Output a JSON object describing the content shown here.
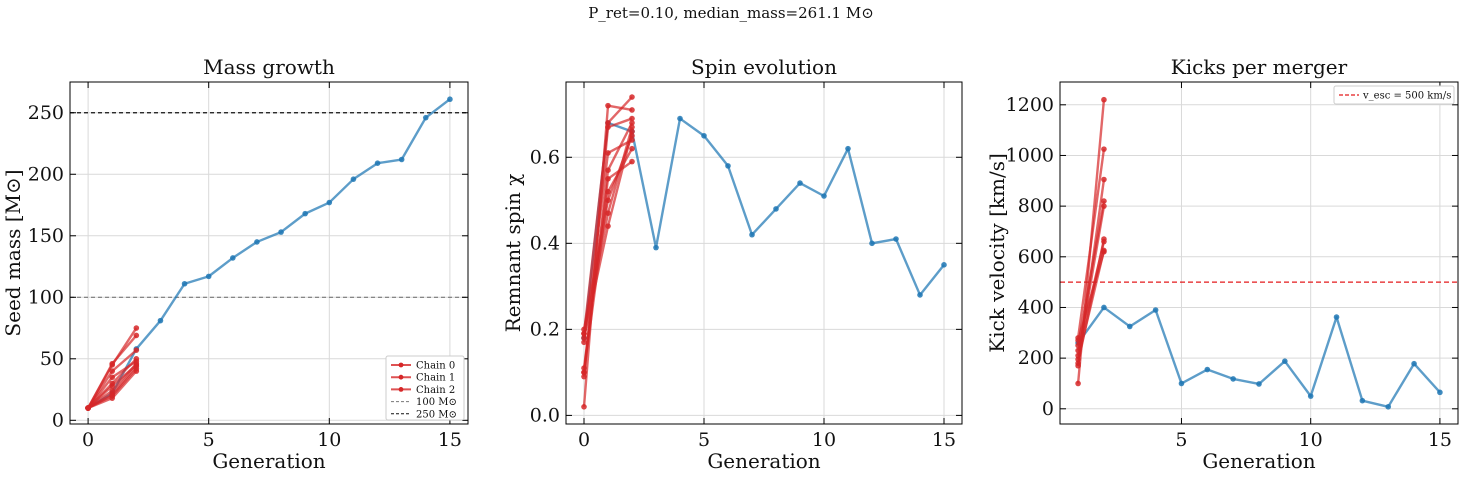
{
  "figure": {
    "suptitle": "P_ret=0.10, median_mass=261.1 M⊙"
  },
  "chart_data": [
    {
      "type": "line",
      "title": "Mass growth",
      "xlabel": "Generation",
      "ylabel": "Seed mass [M⊙]",
      "xlim": [
        -0.75,
        15.75
      ],
      "ylim": [
        -3,
        275
      ],
      "xticks": [
        0,
        5,
        10,
        15
      ],
      "yticks": [
        0,
        50,
        100,
        150,
        200,
        250
      ],
      "grid": true,
      "legend": {
        "placement": "lower right",
        "entries": [
          "Chain 0",
          "Chain 1",
          "Chain 2",
          "100 M⊙",
          "250 M⊙"
        ]
      },
      "hlines": [
        {
          "y": 100,
          "label": "100 M⊙",
          "color": "#777777",
          "dash": "4,3"
        },
        {
          "y": 250,
          "label": "250 M⊙",
          "color": "#111111",
          "dash": "4,3"
        }
      ],
      "series": [
        {
          "color": "#1f77b4",
          "style": "main",
          "x": [
            0,
            1,
            2,
            3,
            4,
            5,
            6,
            7,
            8,
            9,
            10,
            11,
            12,
            13,
            14,
            15
          ],
          "y": [
            10,
            22,
            58,
            81,
            111,
            117,
            132,
            145,
            153,
            168,
            177,
            196,
            209,
            212,
            246,
            261
          ]
        },
        {
          "name": "Chain 0",
          "color": "#d62728",
          "style": "chain",
          "x": [
            0,
            1,
            2
          ],
          "y": [
            10,
            45,
            75
          ]
        },
        {
          "name": "Chain 1",
          "color": "#d62728",
          "style": "chain",
          "x": [
            0,
            1,
            2
          ],
          "y": [
            10,
            35,
            48
          ]
        },
        {
          "name": "Chain 2",
          "color": "#d62728",
          "style": "chain",
          "x": [
            0,
            1,
            2
          ],
          "y": [
            10,
            20,
            42
          ]
        },
        {
          "color": "#d62728",
          "style": "chain",
          "x": [
            0,
            1,
            2
          ],
          "y": [
            10,
            46,
            69
          ]
        },
        {
          "color": "#d62728",
          "style": "chain",
          "x": [
            0,
            1,
            2
          ],
          "y": [
            10,
            28,
            45
          ]
        },
        {
          "color": "#d62728",
          "style": "chain",
          "x": [
            0,
            1,
            2
          ],
          "y": [
            10,
            18,
            40
          ]
        },
        {
          "color": "#d62728",
          "style": "chain",
          "x": [
            0,
            1,
            2
          ],
          "y": [
            10,
            30,
            50
          ]
        },
        {
          "color": "#d62728",
          "style": "chain",
          "x": [
            0,
            1,
            2
          ],
          "y": [
            10,
            24,
            46
          ]
        },
        {
          "color": "#d62728",
          "style": "chain",
          "x": [
            0,
            1,
            2
          ],
          "y": [
            10,
            40,
            57
          ]
        },
        {
          "color": "#d62728",
          "style": "chain",
          "x": [
            0,
            1,
            2
          ],
          "y": [
            10,
            21,
            44
          ]
        }
      ]
    },
    {
      "type": "line",
      "title": "Spin evolution",
      "xlabel": "Generation",
      "ylabel": "Remnant spin χ",
      "xlim": [
        -0.75,
        15.75
      ],
      "ylim": [
        -0.02,
        0.775
      ],
      "xticks": [
        0,
        5,
        10,
        15
      ],
      "yticks": [
        0.0,
        0.2,
        0.4,
        0.6
      ],
      "grid": true,
      "series": [
        {
          "color": "#1f77b4",
          "style": "main",
          "x": [
            0,
            1,
            2,
            3,
            4,
            5,
            6,
            7,
            8,
            9,
            10,
            11,
            12,
            13,
            14,
            15
          ],
          "y": [
            0.18,
            0.68,
            0.66,
            0.39,
            0.69,
            0.65,
            0.58,
            0.42,
            0.48,
            0.54,
            0.51,
            0.62,
            0.4,
            0.41,
            0.28,
            0.35
          ]
        },
        {
          "color": "#d62728",
          "style": "chain",
          "x": [
            0,
            1,
            2
          ],
          "y": [
            0.02,
            0.72,
            0.71
          ]
        },
        {
          "color": "#d62728",
          "style": "chain",
          "x": [
            0,
            1,
            2
          ],
          "y": [
            0.19,
            0.68,
            0.74
          ]
        },
        {
          "color": "#d62728",
          "style": "chain",
          "x": [
            0,
            1,
            2
          ],
          "y": [
            0.1,
            0.57,
            0.68
          ]
        },
        {
          "color": "#d62728",
          "style": "chain",
          "x": [
            0,
            1,
            2
          ],
          "y": [
            0.18,
            0.44,
            0.66
          ]
        },
        {
          "color": "#d62728",
          "style": "chain",
          "x": [
            0,
            1,
            2
          ],
          "y": [
            0.11,
            0.55,
            0.59
          ]
        },
        {
          "color": "#d62728",
          "style": "chain",
          "x": [
            0,
            1,
            2
          ],
          "y": [
            0.2,
            0.5,
            0.65
          ]
        },
        {
          "color": "#d62728",
          "style": "chain",
          "x": [
            0,
            1,
            2
          ],
          "y": [
            0.09,
            0.67,
            0.69
          ]
        },
        {
          "color": "#d62728",
          "style": "chain",
          "x": [
            0,
            1,
            2
          ],
          "y": [
            0.17,
            0.61,
            0.64
          ]
        },
        {
          "color": "#d62728",
          "style": "chain",
          "x": [
            0,
            1,
            2
          ],
          "y": [
            0.19,
            0.47,
            0.67
          ]
        },
        {
          "color": "#d62728",
          "style": "chain",
          "x": [
            0,
            1,
            2
          ],
          "y": [
            0.1,
            0.52,
            0.62
          ]
        }
      ]
    },
    {
      "type": "line",
      "title": "Kicks per merger",
      "xlabel": "Generation",
      "ylabel": "Kick velocity [km/s]",
      "xlim": [
        0.3,
        15.7
      ],
      "ylim": [
        -60,
        1290
      ],
      "xticks": [
        5,
        10,
        15
      ],
      "yticks": [
        0,
        200,
        400,
        600,
        800,
        1000,
        1200
      ],
      "grid": true,
      "legend": {
        "placement": "upper right",
        "entries": [
          "v_esc = 500 km/s"
        ]
      },
      "hlines": [
        {
          "y": 500,
          "label": "v_esc = 500 km/s",
          "color": "#e41a1c",
          "dash": "5,3"
        }
      ],
      "series": [
        {
          "color": "#1f77b4",
          "style": "main",
          "x": [
            1,
            2,
            3,
            4,
            5,
            6,
            7,
            8,
            9,
            10,
            11,
            12,
            13,
            14,
            15
          ],
          "y": [
            260,
            400,
            325,
            390,
            100,
            155,
            118,
            98,
            188,
            50,
            362,
            32,
            8,
            178,
            65
          ]
        },
        {
          "color": "#d62728",
          "style": "chain",
          "x": [
            1,
            2
          ],
          "y": [
            100,
            1220
          ]
        },
        {
          "color": "#d62728",
          "style": "chain",
          "x": [
            1,
            2
          ],
          "y": [
            280,
            1025
          ]
        },
        {
          "color": "#d62728",
          "style": "chain",
          "x": [
            1,
            2
          ],
          "y": [
            170,
            905
          ]
        },
        {
          "color": "#d62728",
          "style": "chain",
          "x": [
            1,
            2
          ],
          "y": [
            250,
            820
          ]
        },
        {
          "color": "#d62728",
          "style": "chain",
          "x": [
            1,
            2
          ],
          "y": [
            210,
            800
          ]
        },
        {
          "color": "#d62728",
          "style": "chain",
          "x": [
            1,
            2
          ],
          "y": [
            180,
            670
          ]
        },
        {
          "color": "#d62728",
          "style": "chain",
          "x": [
            1,
            2
          ],
          "y": [
            230,
            660
          ]
        },
        {
          "color": "#d62728",
          "style": "chain",
          "x": [
            1,
            2
          ],
          "y": [
            270,
            620
          ]
        },
        {
          "color": "#d62728",
          "style": "chain",
          "x": [
            1,
            2
          ],
          "y": [
            195,
            625
          ]
        }
      ]
    }
  ]
}
